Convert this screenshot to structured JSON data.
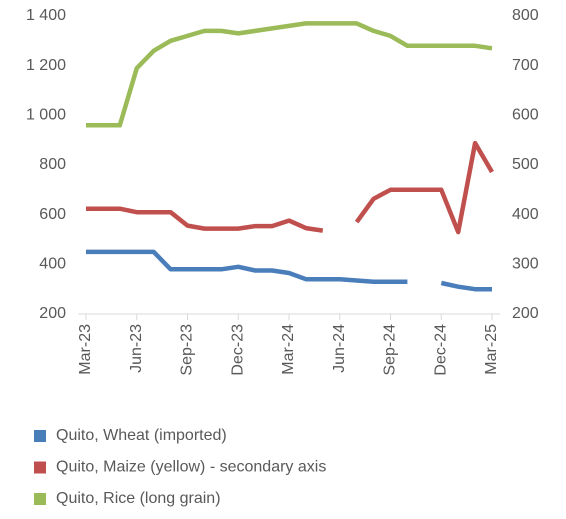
{
  "chart_data": {
    "type": "line",
    "categories": [
      "Mar-23",
      null,
      null,
      "Jun-23",
      null,
      null,
      "Sep-23",
      null,
      null,
      "Dec-23",
      null,
      null,
      "Mar-24",
      null,
      null,
      "Jun-24",
      null,
      null,
      "Sep-24",
      null,
      null,
      "Dec-24",
      null,
      null,
      "Mar-25"
    ],
    "series": [
      {
        "name": "Quito, Wheat (imported)",
        "color": "#4a7ebb",
        "axis": "y",
        "values": [
          450,
          450,
          450,
          450,
          450,
          380,
          380,
          380,
          380,
          390,
          375,
          375,
          365,
          340,
          340,
          340,
          335,
          330,
          330,
          330,
          null,
          325,
          310,
          300,
          300
        ]
      },
      {
        "name": "Quito, Maize (yellow) - secondary axis",
        "color": "#c0504d",
        "axis": "y2",
        "values": [
          412,
          412,
          412,
          405,
          405,
          405,
          378,
          372,
          372,
          372,
          377,
          377,
          388,
          373,
          368,
          null,
          385,
          432,
          450,
          450,
          450,
          450,
          365,
          544,
          486
        ]
      },
      {
        "name": "Quito, Rice (long grain)",
        "color": "#9bbb59",
        "axis": "y",
        "values": [
          960,
          960,
          960,
          1190,
          1260,
          1300,
          1320,
          1340,
          1340,
          1330,
          1340,
          1350,
          1360,
          1370,
          1370,
          1370,
          1370,
          1340,
          1320,
          1280,
          1280,
          1280,
          1280,
          1280,
          1270
        ]
      }
    ],
    "ylim": [
      200,
      1400
    ],
    "yticks": [
      200,
      400,
      600,
      800,
      {
        "value": 1000,
        "label": "1 000"
      },
      {
        "value": 1200,
        "label": "1 200"
      },
      {
        "value": 1400,
        "label": "1 400"
      }
    ],
    "y2lim": [
      200,
      800
    ],
    "y2ticks": [
      200,
      300,
      400,
      500,
      600,
      700,
      800
    ],
    "grid": false,
    "legend": "bottom"
  }
}
